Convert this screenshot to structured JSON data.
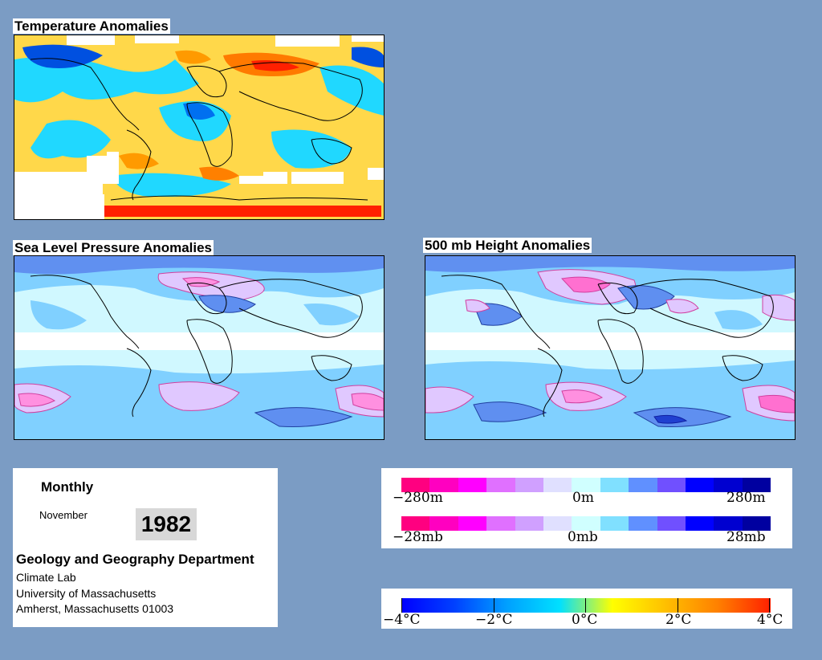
{
  "panels": {
    "temperature_title": "Temperature Anomalies",
    "slp_title": "Sea Level Pressure Anomalies",
    "height_title": "500 mb Height Anomalies"
  },
  "info": {
    "frequency": "Monthly",
    "month": "November",
    "year": "1982",
    "department": "Geology and Geography Department",
    "lab": "Climate Lab",
    "university": "University of Massachusetts",
    "address": "Amherst, Massachusetts 01003"
  },
  "legend_height": {
    "left": "−280m",
    "center": "0m",
    "right": "280m",
    "colors": [
      "#ff0080",
      "#ff00c0",
      "#ff00ff",
      "#e070ff",
      "#d0a0ff",
      "#e0e0ff",
      "#d0ffff",
      "#80e0ff",
      "#6090ff",
      "#7050ff",
      "#0000ff",
      "#0000d0",
      "#0000a0"
    ]
  },
  "legend_pressure": {
    "left": "−28mb",
    "center": "0mb",
    "right": "28mb",
    "colors": [
      "#ff0080",
      "#ff00c0",
      "#ff00ff",
      "#e070ff",
      "#d0a0ff",
      "#e0e0ff",
      "#d0ffff",
      "#80e0ff",
      "#6090ff",
      "#7050ff",
      "#0000ff",
      "#0000d0",
      "#0000a0"
    ]
  },
  "legend_temperature": {
    "t1": "−4°C",
    "t2": "−2°C",
    "t3": "0°C",
    "t4": "2°C",
    "t5": "4°C",
    "gradient": [
      "#0000ff",
      "#0040ff",
      "#00a0ff",
      "#00e0ff",
      "#ffff00",
      "#ffc000",
      "#ff8000",
      "#ff2000"
    ]
  },
  "colors": {
    "background": "#7b9cc4",
    "light_cyan": "#d0f8ff",
    "sky": "#80d0ff",
    "steel": "#5f8ff0",
    "lavender": "#e0c8ff",
    "magenta": "#ff70d0"
  }
}
